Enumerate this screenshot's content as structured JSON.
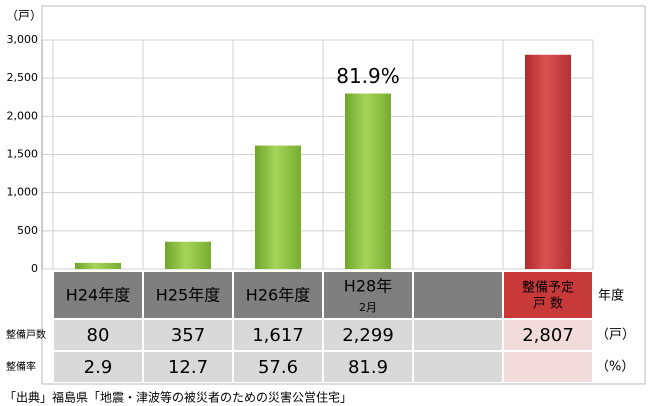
{
  "chart_data": {
    "type": "bar",
    "y_unit": "（戸）",
    "categories": [
      "H24年度",
      "H25年度",
      "H26年度",
      [
        "H28年",
        "2月"
      ],
      null,
      [
        "整備予定",
        "戸 数"
      ]
    ],
    "values": [
      80,
      357,
      1617,
      2299,
      null,
      2807
    ],
    "colors": [
      "#8cc43c",
      "#8cc43c",
      "#8cc43c",
      "#8cc43c",
      "#8cc43c",
      "#c8393a"
    ],
    "annotation": "81.9%",
    "ylim": [
      0,
      3000
    ],
    "yticks": [
      0,
      500,
      {
        "value": 1000,
        "label": "1,000"
      },
      {
        "value": 1500,
        "label": "1,500"
      },
      {
        "value": 2000,
        "label": "2,000"
      },
      {
        "value": 2500,
        "label": "2,500"
      },
      {
        "value": 3000,
        "label": "3,000"
      }
    ],
    "grid": true
  },
  "table": {
    "header_unit": "年度",
    "rows": [
      {
        "label": "整備戸数",
        "cells": [
          "80",
          "357",
          "1,617",
          "2,299",
          null,
          "2,807"
        ],
        "unit": "（戸）"
      },
      {
        "label": "整備率",
        "cells": [
          "2.9",
          "12.7",
          "57.6",
          "81.9",
          null,
          null
        ],
        "unit": "（%）"
      }
    ]
  },
  "source": "「出典」福島県「地震・津波等の被災者のための災害公営住宅」"
}
